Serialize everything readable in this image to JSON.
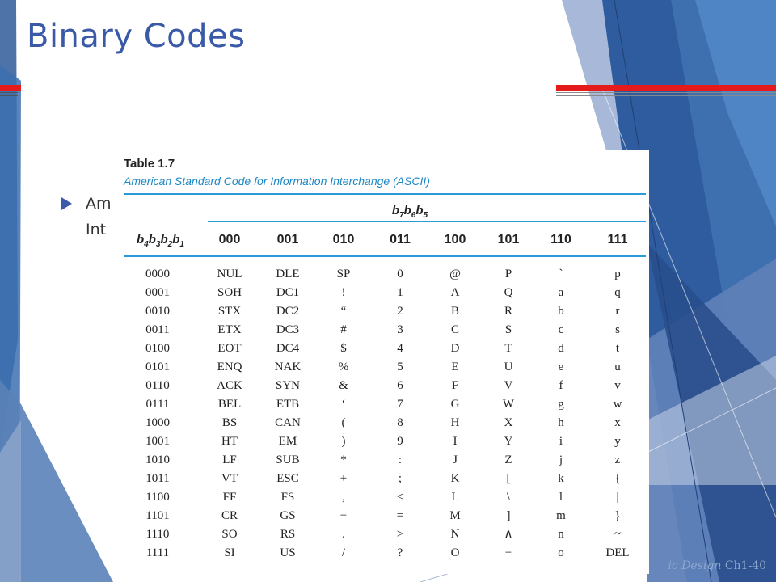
{
  "slide": {
    "title": "Binary Codes",
    "bullet_line1": "Am",
    "bullet_line2": "Int",
    "footer_prefix": "ic Design",
    "footer_page": "Ch1-40"
  },
  "colors": {
    "title": "#3a5aa8",
    "accent_red": "#e51a1a",
    "table_rule": "#2a9ad8",
    "table_subtitle": "#1e88c6"
  },
  "icons": {
    "bullet": "right-triangle-arrow"
  },
  "table": {
    "caption": "Table 1.7",
    "subtitle": "American Standard Code for Information Interchange (ASCII)",
    "group_header": "b7b6b5",
    "row_header": "b4b3b2b1",
    "columns": [
      "000",
      "001",
      "010",
      "011",
      "100",
      "101",
      "110",
      "111"
    ],
    "rows": [
      {
        "code": "0000",
        "cells": [
          "NUL",
          "DLE",
          "SP",
          "0",
          "@",
          "P",
          "`",
          "p"
        ]
      },
      {
        "code": "0001",
        "cells": [
          "SOH",
          "DC1",
          "!",
          "1",
          "A",
          "Q",
          "a",
          "q"
        ]
      },
      {
        "code": "0010",
        "cells": [
          "STX",
          "DC2",
          "“",
          "2",
          "B",
          "R",
          "b",
          "r"
        ]
      },
      {
        "code": "0011",
        "cells": [
          "ETX",
          "DC3",
          "#",
          "3",
          "C",
          "S",
          "c",
          "s"
        ]
      },
      {
        "code": "0100",
        "cells": [
          "EOT",
          "DC4",
          "$",
          "4",
          "D",
          "T",
          "d",
          "t"
        ]
      },
      {
        "code": "0101",
        "cells": [
          "ENQ",
          "NAK",
          "%",
          "5",
          "E",
          "U",
          "e",
          "u"
        ]
      },
      {
        "code": "0110",
        "cells": [
          "ACK",
          "SYN",
          "&",
          "6",
          "F",
          "V",
          "f",
          "v"
        ]
      },
      {
        "code": "0111",
        "cells": [
          "BEL",
          "ETB",
          "‘",
          "7",
          "G",
          "W",
          "g",
          "w"
        ]
      },
      {
        "code": "1000",
        "cells": [
          "BS",
          "CAN",
          "(",
          "8",
          "H",
          "X",
          "h",
          "x"
        ]
      },
      {
        "code": "1001",
        "cells": [
          "HT",
          "EM",
          ")",
          "9",
          "I",
          "Y",
          "i",
          "y"
        ]
      },
      {
        "code": "1010",
        "cells": [
          "LF",
          "SUB",
          "*",
          ":",
          "J",
          "Z",
          "j",
          "z"
        ]
      },
      {
        "code": "1011",
        "cells": [
          "VT",
          "ESC",
          "+",
          ";",
          "K",
          "[",
          "k",
          "{"
        ]
      },
      {
        "code": "1100",
        "cells": [
          "FF",
          "FS",
          ",",
          "<",
          "L",
          "\\",
          "l",
          "|"
        ]
      },
      {
        "code": "1101",
        "cells": [
          "CR",
          "GS",
          "−",
          "=",
          "M",
          "]",
          "m",
          "}"
        ]
      },
      {
        "code": "1110",
        "cells": [
          "SO",
          "RS",
          ".",
          ">",
          "N",
          "∧",
          "n",
          "~"
        ]
      },
      {
        "code": "1111",
        "cells": [
          "SI",
          "US",
          "/",
          "?",
          "O",
          "−",
          "o",
          "DEL"
        ]
      }
    ]
  }
}
